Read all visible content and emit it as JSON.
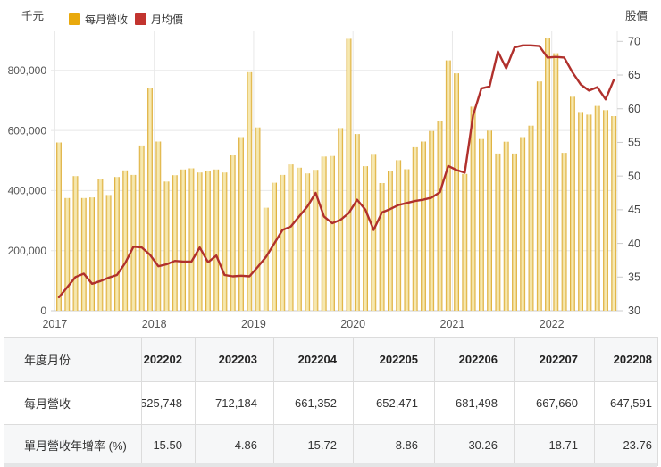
{
  "chart": {
    "unit_label_left": "千元",
    "unit_label_right": "股價",
    "legend": [
      {
        "label": "每月營收",
        "color": "#E9A90D"
      },
      {
        "label": "月均價",
        "color": "#C2342F"
      }
    ],
    "y_left_tick_labels": [
      "800,000",
      "600,000",
      "400,000",
      "200,000",
      "0"
    ],
    "x_year_labels": [
      "2017",
      "2018",
      "2019",
      "2020",
      "2021",
      "2022"
    ],
    "colors": {
      "bar_edge": "#D8A01A",
      "bar_center": "#F6E8B0",
      "line": "#B0302C",
      "gridline": "#e8e8e8",
      "axis_text": "#555555",
      "plot_border": "#cccccc"
    }
  },
  "chart_data": {
    "type": "bar",
    "title": "",
    "x": [
      "2017-01",
      "2017-02",
      "2017-03",
      "2017-04",
      "2017-05",
      "2017-06",
      "2017-07",
      "2017-08",
      "2017-09",
      "2017-10",
      "2017-11",
      "2017-12",
      "2018-01",
      "2018-02",
      "2018-03",
      "2018-04",
      "2018-05",
      "2018-06",
      "2018-07",
      "2018-08",
      "2018-09",
      "2018-10",
      "2018-11",
      "2018-12",
      "2019-01",
      "2019-02",
      "2019-03",
      "2019-04",
      "2019-05",
      "2019-06",
      "2019-07",
      "2019-08",
      "2019-09",
      "2019-10",
      "2019-11",
      "2019-12",
      "2020-01",
      "2020-02",
      "2020-03",
      "2020-04",
      "2020-05",
      "2020-06",
      "2020-07",
      "2020-08",
      "2020-09",
      "2020-10",
      "2020-11",
      "2020-12",
      "2021-01",
      "2021-02",
      "2021-03",
      "2021-04",
      "2021-05",
      "2021-06",
      "2021-07",
      "2021-08",
      "2021-09",
      "2021-10",
      "2021-11",
      "2021-12",
      "2022-01",
      "2022-02",
      "2022-03",
      "2022-04",
      "2022-05",
      "2022-06",
      "2022-07",
      "2022-08"
    ],
    "series": [
      {
        "name": "每月營收",
        "type": "bar",
        "axis": "left",
        "unit": "千元",
        "color": "#E9A90D",
        "values": [
          560000,
          375000,
          448000,
          375000,
          377000,
          437000,
          385000,
          445000,
          467000,
          452000,
          550000,
          742000,
          563000,
          430000,
          451000,
          470000,
          474000,
          460000,
          465000,
          470000,
          460000,
          517000,
          578000,
          794000,
          610000,
          343000,
          426000,
          452000,
          487000,
          476000,
          457000,
          469000,
          513000,
          515000,
          608000,
          905000,
          588000,
          481000,
          519000,
          425000,
          466000,
          501000,
          471000,
          544000,
          563000,
          598000,
          630000,
          833000,
          790000,
          455193,
          679176,
          571510,
          599368,
          523182,
          562430,
          523264,
          578000,
          616000,
          763000,
          908000,
          857000,
          525748,
          712184,
          661352,
          652471,
          681498,
          667660,
          647591
        ]
      },
      {
        "name": "月均價",
        "type": "line",
        "axis": "right",
        "unit": "股價",
        "color": "#B0302C",
        "values": [
          32.0,
          33.5,
          35.0,
          35.5,
          34.0,
          34.4,
          34.9,
          35.3,
          37.1,
          39.5,
          39.4,
          38.3,
          36.6,
          36.9,
          37.4,
          37.3,
          37.3,
          39.4,
          37.2,
          38.2,
          35.3,
          35.1,
          35.2,
          35.1,
          36.5,
          38.0,
          40.0,
          42.0,
          42.5,
          44.0,
          45.5,
          47.5,
          44.0,
          43.0,
          43.5,
          44.5,
          46.5,
          45.0,
          42.0,
          44.6,
          45.1,
          45.7,
          46.0,
          46.3,
          46.5,
          46.8,
          47.6,
          51.5,
          50.9,
          50.5,
          59.0,
          63.0,
          63.3,
          68.5,
          66.0,
          69.1,
          69.4,
          69.4,
          69.3,
          67.6,
          67.7,
          67.6,
          65.4,
          63.6,
          62.7,
          63.2,
          61.4,
          64.3
        ]
      }
    ],
    "left_axis": {
      "label": "千元",
      "range": [
        0,
        930000
      ],
      "gridlines": [
        200000,
        400000,
        600000,
        800000
      ]
    },
    "right_axis": {
      "label": "股價",
      "range": [
        30,
        71.5
      ],
      "ticks": [
        70,
        65,
        60,
        55,
        50,
        45,
        40,
        35,
        30
      ]
    },
    "legend_position": "top",
    "grid": true
  },
  "table": {
    "row_headers": [
      "年度月份",
      "每月營收",
      "單月營收年增率 (%)"
    ],
    "columns": [
      "202202",
      "202203",
      "202204",
      "202205",
      "202206",
      "202207",
      "202208"
    ],
    "revenue_row": [
      "525,748",
      "712,184",
      "661,352",
      "652,471",
      "681,498",
      "667,660",
      "647,591"
    ],
    "yoy_row": [
      "15.50",
      "4.86",
      "15.72",
      "8.86",
      "30.26",
      "18.71",
      "23.76"
    ],
    "first_column_clipped": true
  }
}
